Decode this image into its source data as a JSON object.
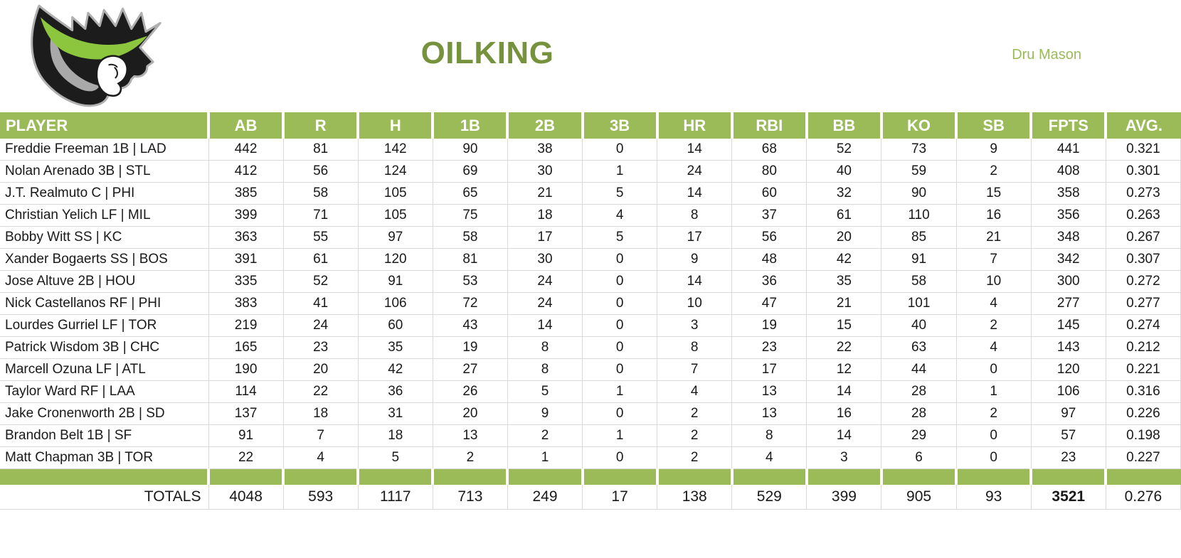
{
  "page": {
    "title": "OILKING",
    "owner": "Dru Mason"
  },
  "colors": {
    "header_green": "#9BBB59",
    "title_green": "#76923C",
    "owner_green": "#9BBB59",
    "grid_gray": "#D9D9D9",
    "logo_black": "#1c1c1c",
    "logo_green": "#8CC63E",
    "logo_gray": "#A9A9A9",
    "logo_outline": "#b0b0b0"
  },
  "table": {
    "columns": [
      "PLAYER",
      "AB",
      "R",
      "H",
      "1B",
      "2B",
      "3B",
      "HR",
      "RBI",
      "BB",
      "KO",
      "SB",
      "FPTS",
      "AVG."
    ],
    "rows": [
      {
        "player": "Freddie Freeman 1B | LAD",
        "values": [
          "442",
          "81",
          "142",
          "90",
          "38",
          "0",
          "14",
          "68",
          "52",
          "73",
          "9",
          "441",
          "0.321"
        ]
      },
      {
        "player": "Nolan Arenado 3B | STL",
        "values": [
          "412",
          "56",
          "124",
          "69",
          "30",
          "1",
          "24",
          "80",
          "40",
          "59",
          "2",
          "408",
          "0.301"
        ]
      },
      {
        "player": "J.T. Realmuto C | PHI",
        "values": [
          "385",
          "58",
          "105",
          "65",
          "21",
          "5",
          "14",
          "60",
          "32",
          "90",
          "15",
          "358",
          "0.273"
        ]
      },
      {
        "player": "Christian Yelich LF | MIL",
        "values": [
          "399",
          "71",
          "105",
          "75",
          "18",
          "4",
          "8",
          "37",
          "61",
          "110",
          "16",
          "356",
          "0.263"
        ]
      },
      {
        "player": "Bobby Witt SS | KC",
        "values": [
          "363",
          "55",
          "97",
          "58",
          "17",
          "5",
          "17",
          "56",
          "20",
          "85",
          "21",
          "348",
          "0.267"
        ]
      },
      {
        "player": "Xander Bogaerts SS | BOS",
        "values": [
          "391",
          "61",
          "120",
          "81",
          "30",
          "0",
          "9",
          "48",
          "42",
          "91",
          "7",
          "342",
          "0.307"
        ]
      },
      {
        "player": "Jose Altuve 2B | HOU",
        "values": [
          "335",
          "52",
          "91",
          "53",
          "24",
          "0",
          "14",
          "36",
          "35",
          "58",
          "10",
          "300",
          "0.272"
        ]
      },
      {
        "player": "Nick Castellanos RF | PHI",
        "values": [
          "383",
          "41",
          "106",
          "72",
          "24",
          "0",
          "10",
          "47",
          "21",
          "101",
          "4",
          "277",
          "0.277"
        ]
      },
      {
        "player": "Lourdes Gurriel LF | TOR",
        "values": [
          "219",
          "24",
          "60",
          "43",
          "14",
          "0",
          "3",
          "19",
          "15",
          "40",
          "2",
          "145",
          "0.274"
        ]
      },
      {
        "player": "Patrick Wisdom 3B | CHC",
        "values": [
          "165",
          "23",
          "35",
          "19",
          "8",
          "0",
          "8",
          "23",
          "22",
          "63",
          "4",
          "143",
          "0.212"
        ]
      },
      {
        "player": "Marcell Ozuna LF | ATL",
        "values": [
          "190",
          "20",
          "42",
          "27",
          "8",
          "0",
          "7",
          "17",
          "12",
          "44",
          "0",
          "120",
          "0.221"
        ]
      },
      {
        "player": "Taylor Ward RF | LAA",
        "values": [
          "114",
          "22",
          "36",
          "26",
          "5",
          "1",
          "4",
          "13",
          "14",
          "28",
          "1",
          "106",
          "0.316"
        ]
      },
      {
        "player": "Jake Cronenworth 2B | SD",
        "values": [
          "137",
          "18",
          "31",
          "20",
          "9",
          "0",
          "2",
          "13",
          "16",
          "28",
          "2",
          "97",
          "0.226"
        ]
      },
      {
        "player": "Brandon Belt 1B | SF",
        "values": [
          "91",
          "7",
          "18",
          "13",
          "2",
          "1",
          "2",
          "8",
          "14",
          "29",
          "0",
          "57",
          "0.198"
        ]
      },
      {
        "player": "Matt Chapman 3B | TOR",
        "values": [
          "22",
          "4",
          "5",
          "2",
          "1",
          "0",
          "2",
          "4",
          "3",
          "6",
          "0",
          "23",
          "0.227"
        ]
      }
    ],
    "totals": {
      "label": "TOTALS",
      "values": [
        "4048",
        "593",
        "1117",
        "713",
        "249",
        "17",
        "138",
        "529",
        "399",
        "905",
        "93",
        "3521",
        "0.276"
      ],
      "bold_index": 11
    }
  }
}
